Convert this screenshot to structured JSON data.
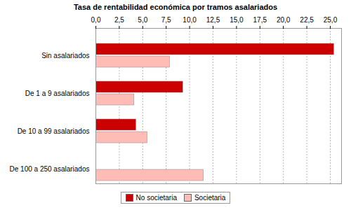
{
  "chart_data": {
    "type": "bar",
    "orientation": "horizontal",
    "title": "Tasa de rentabilidad económica por tramos asalariados",
    "categories": [
      "Sin asalariados",
      "De 1 a 9 asalariados",
      "De 10 a 99 asalariados",
      "De 100 a 250 asalariados"
    ],
    "series": [
      {
        "name": "No societaria",
        "color": "#cc0000",
        "values": [
          25.4,
          9.3,
          4.3,
          null
        ]
      },
      {
        "name": "Societaria",
        "color": "#ffbcb6",
        "values": [
          7.9,
          4.1,
          5.5,
          11.5
        ]
      }
    ],
    "xlim": [
      0,
      26.2
    ],
    "xticks": [
      {
        "value": 0,
        "label": "0,0"
      },
      {
        "value": 2.5,
        "label": "2,5"
      },
      {
        "value": 5,
        "label": "5,0"
      },
      {
        "value": 7.5,
        "label": "7,5"
      },
      {
        "value": 10,
        "label": "10,0"
      },
      {
        "value": 12.5,
        "label": "12,5"
      },
      {
        "value": 15,
        "label": "15,0"
      },
      {
        "value": 17.5,
        "label": "17,5"
      },
      {
        "value": 20,
        "label": "20,0"
      },
      {
        "value": 22.5,
        "label": "22,5"
      },
      {
        "value": 25,
        "label": "25,0"
      }
    ],
    "grid": true,
    "legend": "bottom"
  }
}
